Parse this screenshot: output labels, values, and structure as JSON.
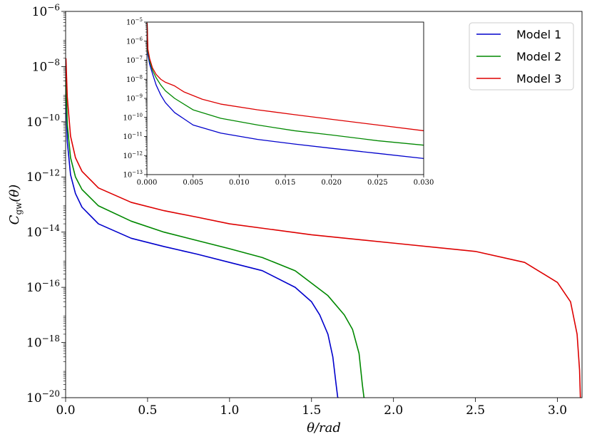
{
  "chart_data": [
    {
      "type": "line",
      "scale": {
        "x": "linear",
        "y": "log"
      },
      "xlabel": "θ/rad",
      "ylabel": "C_gw(θ)",
      "ylabel_main": "C",
      "ylabel_sub": "gw",
      "ylabel_tail": "(θ)",
      "xlim": [
        0.0,
        3.15
      ],
      "ylim": [
        1e-20,
        1e-06
      ],
      "xticks": [
        "0.0",
        "0.5",
        "1.0",
        "1.5",
        "2.0",
        "2.5",
        "3.0"
      ],
      "yticks": [
        {
          "base": "10",
          "exp": "−20"
        },
        {
          "base": "10",
          "exp": "−18"
        },
        {
          "base": "10",
          "exp": "−16"
        },
        {
          "base": "10",
          "exp": "−14"
        },
        {
          "base": "10",
          "exp": "−12"
        },
        {
          "base": "10",
          "exp": "−10"
        },
        {
          "base": "10",
          "exp": "−8"
        },
        {
          "base": "10",
          "exp": "−6"
        }
      ],
      "grid": false,
      "legend": {
        "position": "top-right",
        "entries": [
          "Model 1",
          "Model 2",
          "Model 3"
        ]
      },
      "series": [
        {
          "name": "Model 1",
          "color": "#0000cc",
          "x": [
            0.002,
            0.01,
            0.03,
            0.06,
            0.1,
            0.2,
            0.4,
            0.6,
            0.8,
            1.0,
            1.2,
            1.4,
            1.5,
            1.55,
            1.6,
            1.63,
            1.65,
            1.66,
            1.665
          ],
          "y": [
            1e-09,
            2e-11,
            1.2e-12,
            2.5e-13,
            8e-14,
            2e-14,
            6e-15,
            3e-15,
            1.6e-15,
            8e-16,
            4e-16,
            1e-16,
            3e-17,
            1e-17,
            2e-18,
            3e-19,
            3e-20,
            1e-20,
            1e-20
          ]
        },
        {
          "name": "Model 2",
          "color": "#008800",
          "x": [
            0.002,
            0.01,
            0.03,
            0.06,
            0.1,
            0.2,
            0.4,
            0.6,
            0.8,
            1.0,
            1.2,
            1.4,
            1.6,
            1.7,
            1.75,
            1.79,
            1.81,
            1.82,
            1.825
          ],
          "y": [
            4e-09,
            8e-11,
            5e-12,
            1e-12,
            3.5e-13,
            9e-14,
            2.5e-14,
            1e-14,
            5e-15,
            2.5e-15,
            1.2e-15,
            4e-16,
            5e-17,
            1e-17,
            3e-18,
            4e-19,
            3e-20,
            1e-20,
            1e-20
          ]
        },
        {
          "name": "Model 3",
          "color": "#dd0000",
          "x": [
            0.002,
            0.01,
            0.03,
            0.06,
            0.1,
            0.2,
            0.4,
            0.6,
            0.8,
            1.0,
            1.5,
            2.0,
            2.5,
            2.8,
            3.0,
            3.08,
            3.12,
            3.135,
            3.14
          ],
          "y": [
            2e-08,
            8e-10,
            3e-11,
            5e-12,
            1.6e-12,
            4e-13,
            1.2e-13,
            6e-14,
            3.5e-14,
            2e-14,
            8e-15,
            4e-15,
            2e-15,
            8e-16,
            1.5e-16,
            3e-17,
            2e-18,
            1e-19,
            1e-20
          ]
        }
      ]
    },
    {
      "type": "line",
      "scale": {
        "x": "linear",
        "y": "log"
      },
      "inset": true,
      "xlim": [
        0.0,
        0.03
      ],
      "ylim": [
        1e-13,
        1e-05
      ],
      "xticks": [
        "0.000",
        "0.005",
        "0.010",
        "0.015",
        "0.020",
        "0.025",
        "0.030"
      ],
      "yticks": [
        {
          "base": "10",
          "exp": "−13"
        },
        {
          "base": "10",
          "exp": "−12"
        },
        {
          "base": "10",
          "exp": "−11"
        },
        {
          "base": "10",
          "exp": "−10"
        },
        {
          "base": "10",
          "exp": "−9"
        },
        {
          "base": "10",
          "exp": "−8"
        },
        {
          "base": "10",
          "exp": "−7"
        },
        {
          "base": "10",
          "exp": "−6"
        },
        {
          "base": "10",
          "exp": "−5"
        }
      ],
      "series": [
        {
          "name": "Model 1",
          "color": "#0000cc",
          "x": [
            3e-05,
            0.0001,
            0.0003,
            0.0006,
            0.001,
            0.0015,
            0.002,
            0.003,
            0.005,
            0.008,
            0.012,
            0.016,
            0.02,
            0.025,
            0.03
          ],
          "y": [
            5e-06,
            2e-07,
            6e-08,
            2e-08,
            5e-09,
            1.5e-09,
            6e-10,
            1.8e-10,
            4e-11,
            1.5e-11,
            7e-12,
            4e-12,
            2.4e-12,
            1.3e-12,
            7e-13
          ]
        },
        {
          "name": "Model 2",
          "color": "#008800",
          "x": [
            3e-05,
            0.0001,
            0.0003,
            0.0006,
            0.001,
            0.0015,
            0.002,
            0.003,
            0.005,
            0.008,
            0.012,
            0.016,
            0.02,
            0.025,
            0.03
          ],
          "y": [
            7e-06,
            3e-07,
            9e-08,
            3e-08,
            1.2e-08,
            5e-09,
            2.5e-09,
            1e-09,
            2.5e-10,
            9e-11,
            4e-11,
            2e-11,
            1.2e-11,
            6e-12,
            3.5e-12
          ]
        },
        {
          "name": "Model 3",
          "color": "#dd0000",
          "x": [
            3e-05,
            0.0001,
            0.0003,
            0.0006,
            0.001,
            0.0015,
            0.002,
            0.003,
            0.004,
            0.006,
            0.008,
            0.012,
            0.016,
            0.02,
            0.025,
            0.03
          ],
          "y": [
            9e-06,
            4e-07,
            1.2e-07,
            4e-08,
            1.8e-08,
            1e-08,
            7e-09,
            4.5e-09,
            2.2e-09,
            9e-10,
            5e-10,
            2.5e-10,
            1.4e-10,
            8e-11,
            4e-11,
            2e-11
          ]
        }
      ]
    }
  ]
}
